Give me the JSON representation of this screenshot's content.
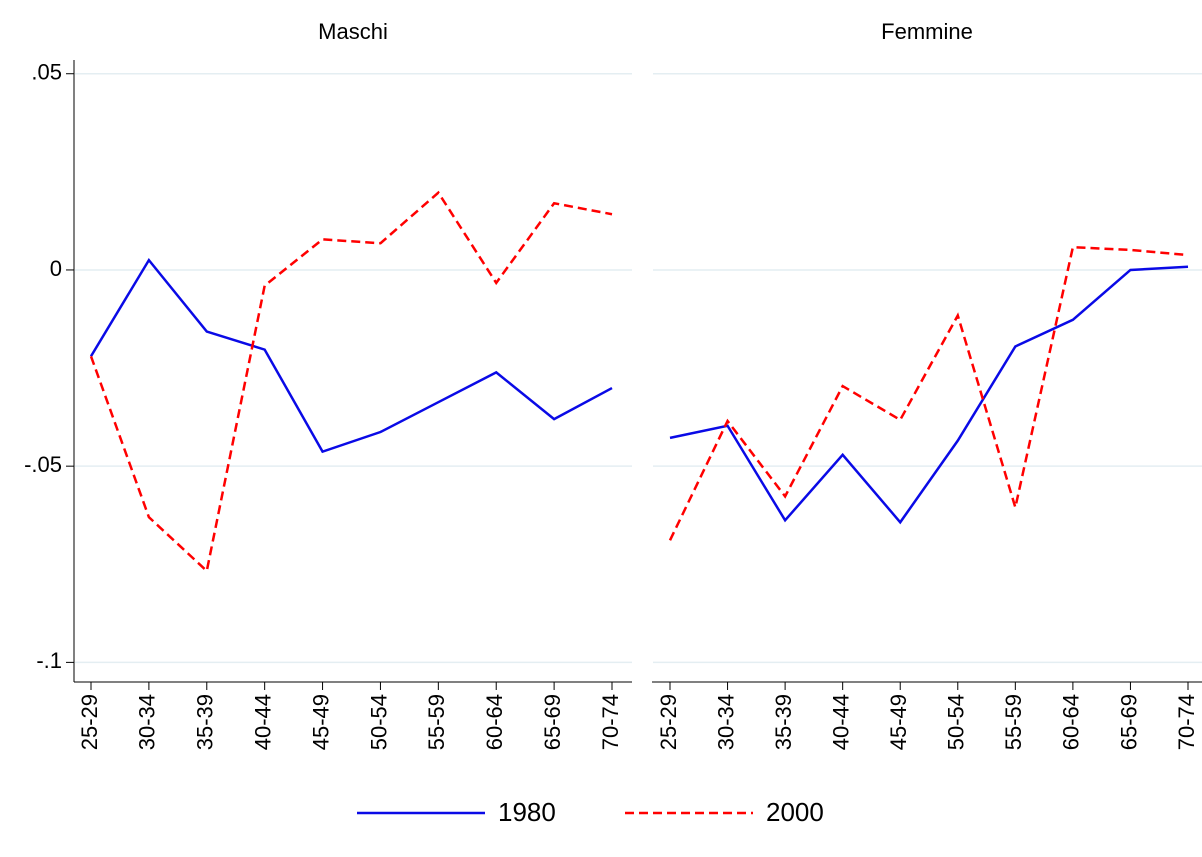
{
  "chart_data": [
    {
      "type": "line",
      "title": "Maschi",
      "categories": [
        "25-29",
        "30-34",
        "35-39",
        "40-44",
        "45-49",
        "50-54",
        "55-59",
        "60-64",
        "65-69",
        "70-74"
      ],
      "series": [
        {
          "name": "1980",
          "color": "#0a0ae6",
          "style": "solid",
          "values": [
            -0.022,
            0.0025,
            -0.0157,
            -0.0203,
            -0.0463,
            -0.0413,
            -0.0337,
            -0.0261,
            -0.038,
            -0.0301
          ]
        },
        {
          "name": "2000",
          "color": "#ff0000",
          "style": "dashed",
          "values": [
            -0.022,
            -0.063,
            -0.0767,
            -0.004,
            0.0078,
            0.0068,
            0.0197,
            -0.0033,
            0.017,
            0.0142
          ]
        }
      ],
      "ylim": [
        -0.105,
        0.0535
      ],
      "yticks": [
        {
          "value": -0.1,
          "label": "-.1"
        },
        {
          "value": -0.05,
          "label": "-.05"
        },
        0,
        {
          "value": 0.05,
          "label": ".05"
        }
      ],
      "grid": true
    },
    {
      "type": "line",
      "title": "Femmine",
      "categories": [
        "25-29",
        "30-34",
        "35-39",
        "40-44",
        "45-49",
        "50-54",
        "55-59",
        "60-64",
        "65-69",
        "70-74"
      ],
      "series": [
        {
          "name": "1980",
          "color": "#0a0ae6",
          "style": "solid",
          "values": [
            -0.0428,
            -0.0397,
            -0.0638,
            -0.0471,
            -0.0643,
            -0.0435,
            -0.0195,
            -0.0127,
            0,
            0.0008
          ]
        },
        {
          "name": "2000",
          "color": "#ff0000",
          "style": "dashed",
          "values": [
            -0.0689,
            -0.0385,
            -0.0577,
            -0.0296,
            -0.0382,
            -0.0116,
            -0.0605,
            0.0058,
            0.0051,
            0.0038
          ]
        }
      ],
      "ylim": [
        -0.105,
        0.0535
      ],
      "yticks": [
        -0.1,
        -0.05,
        0,
        0.05
      ],
      "grid": true
    }
  ]
}
